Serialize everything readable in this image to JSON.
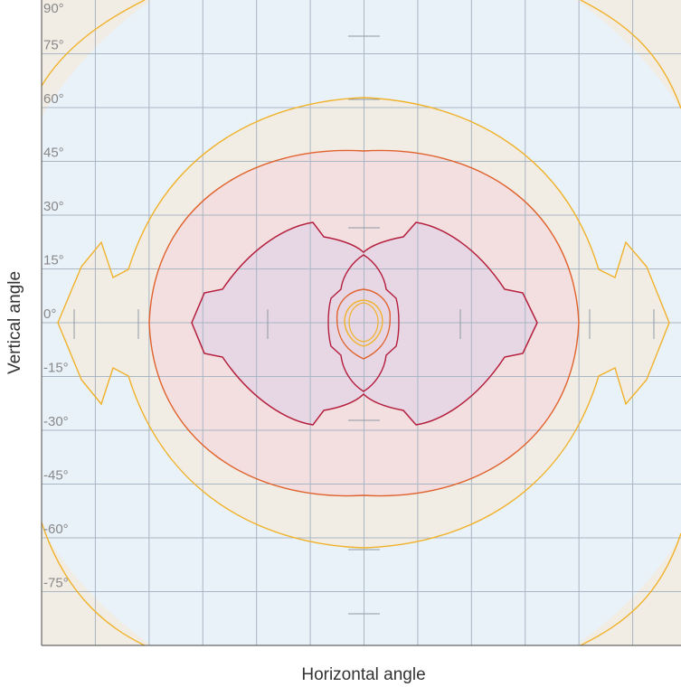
{
  "chart_data": {
    "type": "contour",
    "title": "",
    "xlabel": "Horizontal angle",
    "ylabel": "Vertical angle",
    "xlim": [
      -90,
      90
    ],
    "ylim": [
      -90,
      90
    ],
    "y_ticks": [
      "90°",
      "75°",
      "60°",
      "45°",
      "30°",
      "15°",
      "0°",
      "-15°",
      "-30°",
      "-45°",
      "-60°",
      "-75°"
    ],
    "grid": true,
    "colors": {
      "outer_background": "#f1ede5",
      "middle_background": "#e9f1f9",
      "grid": "#a9b6c3",
      "level_outer": "#f0b22b",
      "level_mid": "#e0622d",
      "level_inner": "#b41e3c",
      "fill_outer": "#f2ede4",
      "fill_mid": "#f3dfe0",
      "fill_inner": "#e7d7e5"
    }
  }
}
